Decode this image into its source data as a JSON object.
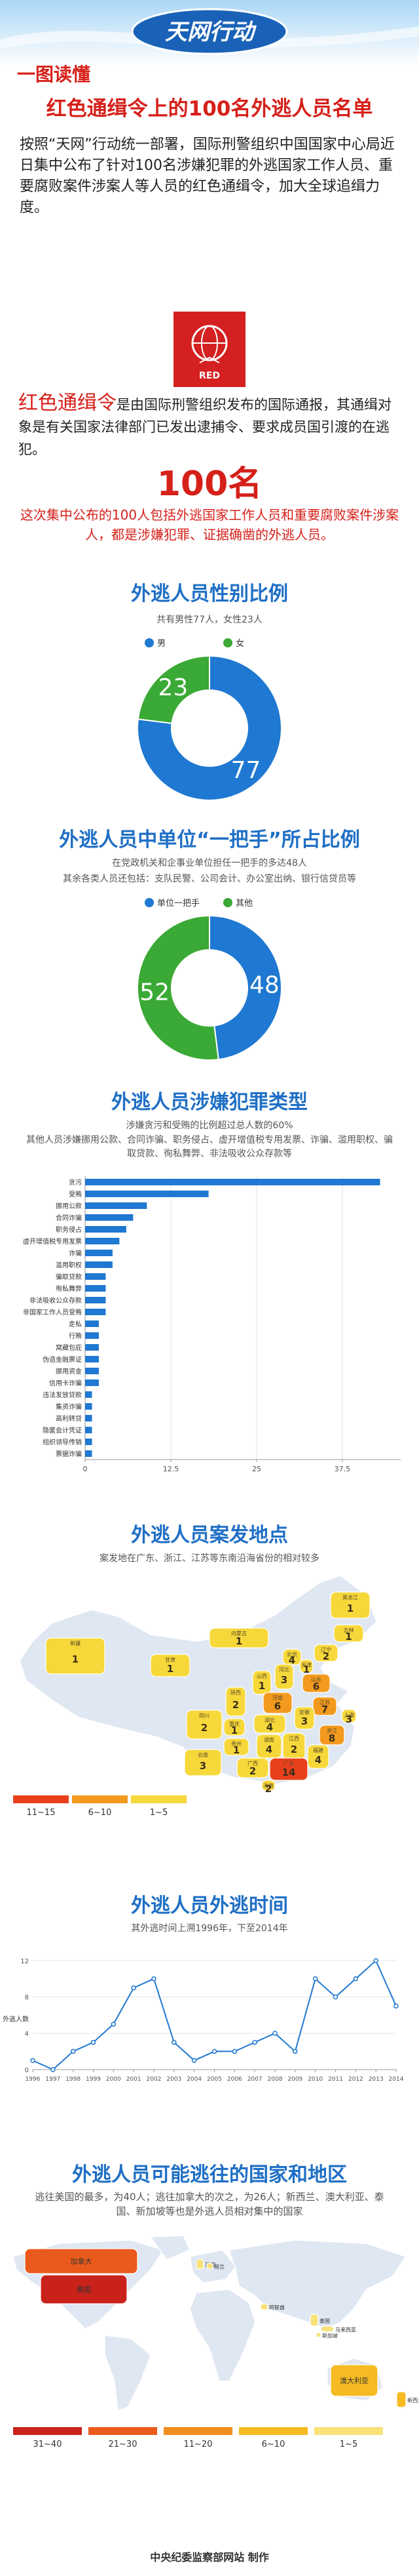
{
  "header": {
    "badge": "天网行动",
    "kicker": "一图读懂",
    "title": "红色通缉令上的100名外逃人员名单"
  },
  "intro": "按照“天网”行动统一部署，国际刑警组织中国国家中心局近日集中公布了针对100名涉嫌犯罪的外逃国家工作人员、重要腐败案件涉案人等人员的红色通缉令，加大全球追缉力度。",
  "logo_text": "RED",
  "definition": {
    "term": "红色通缉令",
    "text": "是由国际刑警组织发布的国际通报，其通缉对象是有关国家法律部门已发出逮捕令、要求成员国引渡的在逃犯。"
  },
  "highlight": {
    "number": "100名",
    "text": "这次集中公布的100人包括外逃国家工作人员和重要腐败案件涉案人，都是涉嫌犯罪、证据确凿的外逃人员。"
  },
  "chart_data": [
    {
      "type": "donut",
      "title": "外逃人员性别比例",
      "subtitle": "共有男性77人，女性23人",
      "categories": [
        "男",
        "女"
      ],
      "values": [
        77,
        23
      ],
      "colors": [
        "#1f78d1",
        "#3aa935"
      ]
    },
    {
      "type": "donut",
      "title": "外逃人员中单位“一把手”所占比例",
      "subtitle": [
        "在党政机关和企事业单位担任一把手的多达48人",
        "其余各类人员还包括：支队民警、公司会计、办公室出纳、银行信贷员等"
      ],
      "categories": [
        "单位一把手",
        "其他"
      ],
      "values": [
        48,
        52
      ],
      "colors": [
        "#1f78d1",
        "#3aa935"
      ]
    },
    {
      "type": "hbar",
      "title": "外逃人员涉嫌犯罪类型",
      "subtitle": [
        "涉嫌贪污和受贿的比例超过总人数的60%",
        "其他人员涉嫌挪用公款、合同诈骗、职务侵占、虚开增值税专用发票、诈骗、滥用职权、骗取贷款、徇私舞弊、非法吸收公众存款等"
      ],
      "categories": [
        "贪污",
        "受贿",
        "挪用公款",
        "合同诈骗",
        "职务侵占",
        "虚开增值税专用发票",
        "诈骗",
        "滥用职权",
        "骗取贷款",
        "徇私舞弊",
        "非法吸收公众存款",
        "非国家工作人员受贿",
        "走私",
        "行贿",
        "窝藏包庇",
        "伪造金融票证",
        "挪用资金",
        "信用卡诈骗",
        "违法发放贷款",
        "集资诈骗",
        "高利转贷",
        "隐匿会计凭证",
        "组织领导传销",
        "票据诈骗"
      ],
      "values": [
        43,
        18,
        9,
        7,
        6,
        5,
        4,
        4,
        3,
        3,
        3,
        3,
        2,
        2,
        2,
        2,
        2,
        2,
        1,
        1,
        1,
        1,
        1,
        1
      ],
      "color": "#1f78d1",
      "xlim": [
        0,
        46
      ],
      "xticks": [
        0,
        12.5,
        25,
        37.5
      ],
      "grid": true
    },
    {
      "type": "choropleth",
      "title": "外逃人员案发地点",
      "subtitle": "案发地在广东、浙江、江苏等东南沿海省份的相对较多",
      "regions": [
        "新疆",
        "甘肃",
        "内蒙古",
        "黑龙江",
        "吉林",
        "辽宁",
        "北京",
        "天津",
        "河北",
        "山西",
        "陕西",
        "山东",
        "河南",
        "江苏",
        "安徽",
        "上海",
        "浙江",
        "湖北",
        "重庆",
        "四川",
        "贵州",
        "云南",
        "湖南",
        "江西",
        "福建",
        "广东",
        "广西",
        "海南"
      ],
      "values": [
        1,
        1,
        1,
        1,
        1,
        2,
        4,
        1,
        3,
        1,
        2,
        6,
        6,
        7,
        3,
        3,
        8,
        4,
        1,
        2,
        1,
        3,
        4,
        2,
        4,
        14,
        2,
        2
      ],
      "show_values": true,
      "legend": [
        {
          "label": "11~15",
          "color": "#e8401c"
        },
        {
          "label": "6~10",
          "color": "#f39a1e"
        },
        {
          "label": "1~5",
          "color": "#f7d83a"
        }
      ]
    },
    {
      "type": "line",
      "title": "外逃人员外逃时间",
      "subtitle": "其外逃时间上溯1996年，下至2014年",
      "y_label": "外逃人数",
      "x": [
        1996,
        1997,
        1998,
        1999,
        2000,
        2001,
        2002,
        2003,
        2004,
        2005,
        2006,
        2007,
        2008,
        2009,
        2010,
        2011,
        2012,
        2013,
        2014
      ],
      "values": [
        1,
        0,
        2,
        3,
        5,
        9,
        10,
        3,
        1,
        2,
        2,
        3,
        4,
        2,
        10,
        8,
        10,
        12,
        7
      ],
      "color": "#1f78d1",
      "xlim": [
        1996,
        2014
      ],
      "ylim": [
        0,
        13
      ],
      "yticks": [
        0,
        4,
        8,
        12
      ],
      "grid": true
    },
    {
      "type": "choropleth",
      "title": "外逃人员可能逃往的国家和地区",
      "subtitle": "逃往美国的最多，为40人；逃往加拿大的次之，为26人；新西兰、澳大利亚、泰国、新加坡等也是外逃人员相对集中的国家",
      "regions": [
        "美国",
        "加拿大",
        "澳大利亚",
        "新西兰",
        "泰国",
        "新加坡",
        "英国",
        "荷兰",
        "阿联酋",
        "马来西亚"
      ],
      "values": [
        40,
        26,
        9,
        7,
        4,
        3,
        2,
        1,
        1,
        1
      ],
      "show_values": false,
      "legend": [
        {
          "label": "31~40",
          "color": "#c9221b"
        },
        {
          "label": "21~30",
          "color": "#ea5a1c"
        },
        {
          "label": "11~20",
          "color": "#f38d1f"
        },
        {
          "label": "6~10",
          "color": "#f6bb22"
        },
        {
          "label": "1~5",
          "color": "#f8e27a"
        }
      ]
    }
  ],
  "footer": "中央纪委监察部网站 制作"
}
